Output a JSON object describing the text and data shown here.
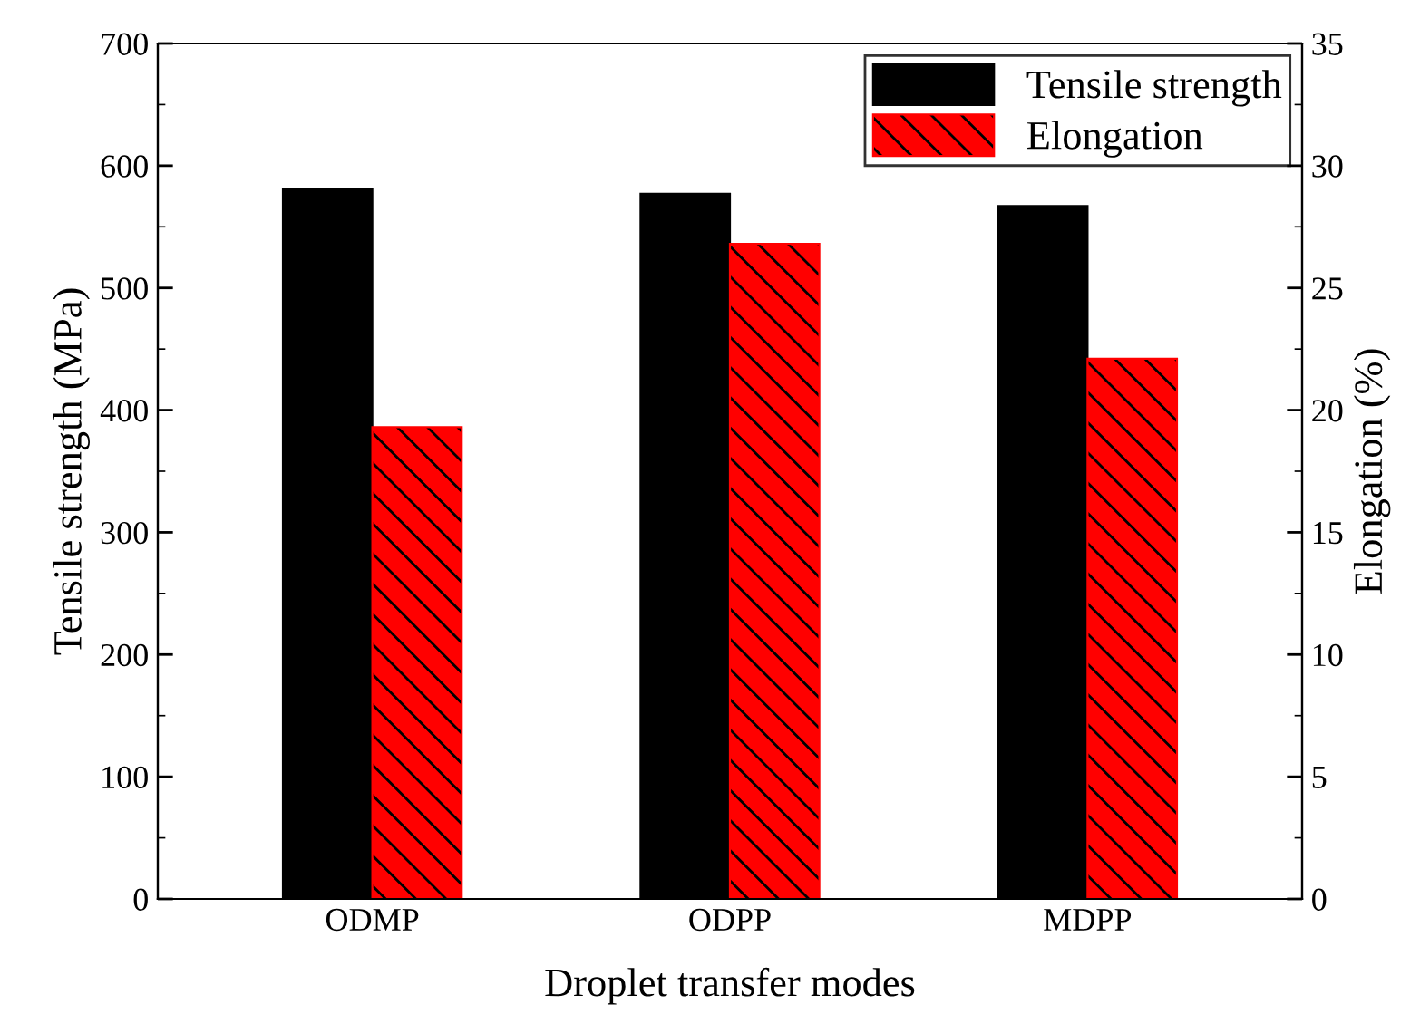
{
  "chart_data": {
    "type": "bar",
    "xlabel": "Droplet transfer modes",
    "ylabel": "Tensile strength (MPa)",
    "y2label": "Elongation (%)",
    "categories": [
      "ODMP",
      "ODPP",
      "MDPP"
    ],
    "series": [
      {
        "name": "Tensile strength",
        "color": "#000000",
        "values": [
          581,
          577,
          567
        ]
      },
      {
        "name": "Elongation",
        "color": "#ff0000",
        "values": [
          19.3,
          26.8,
          22.1
        ],
        "axis": "y2"
      }
    ],
    "ylim": [
      0,
      700
    ],
    "yticks": [
      0,
      100,
      200,
      300,
      400,
      500,
      600,
      700
    ],
    "y2lim": [
      0,
      35
    ],
    "y2ticks": [
      0,
      5,
      10,
      15,
      20,
      25,
      30,
      35
    ],
    "legend": "top right",
    "grid": false
  }
}
